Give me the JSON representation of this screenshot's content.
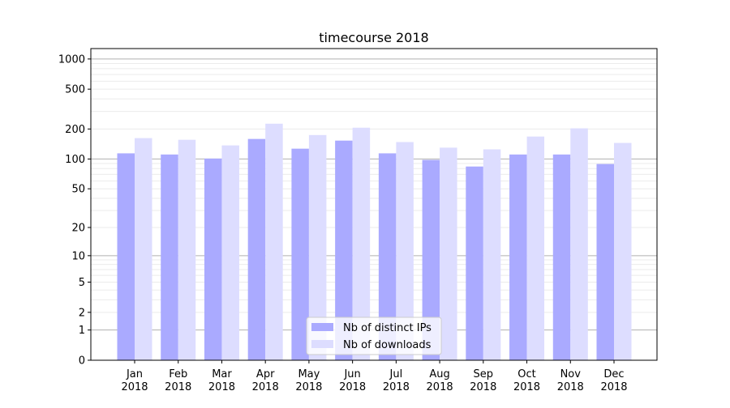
{
  "chart_data": {
    "type": "bar",
    "title": "timecourse 2018",
    "xlabel": "",
    "ylabel": "",
    "yscale": "log(x+1)",
    "ylim": [
      0,
      1270
    ],
    "yticks": [
      0,
      1,
      2,
      5,
      10,
      20,
      50,
      100,
      200,
      500,
      1000
    ],
    "grid": true,
    "legend_position": "bottom-center",
    "categories": [
      "Jan\n2018",
      "Feb\n2018",
      "Mar\n2018",
      "Apr\n2018",
      "May\n2018",
      "Jun\n2018",
      "Jul\n2018",
      "Aug\n2018",
      "Sep\n2018",
      "Oct\n2018",
      "Nov\n2018",
      "Dec\n2018"
    ],
    "series": [
      {
        "name": "Nb of distinct IPs",
        "color": "#aaaaff",
        "values": [
          114,
          111,
          101,
          159,
          127,
          153,
          114,
          98,
          84,
          111,
          111,
          89
        ]
      },
      {
        "name": "Nb of downloads",
        "color": "#ddddff",
        "values": [
          162,
          156,
          137,
          226,
          174,
          206,
          148,
          130,
          125,
          168,
          203,
          145
        ]
      }
    ]
  }
}
